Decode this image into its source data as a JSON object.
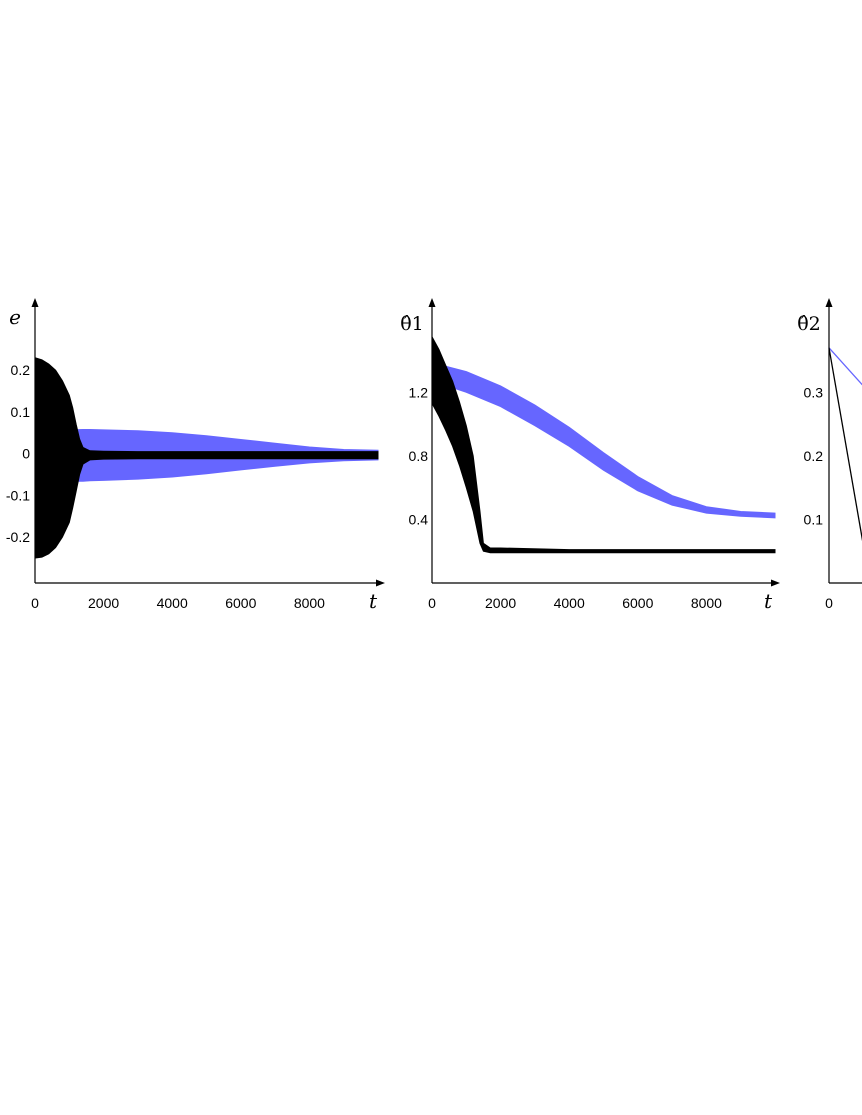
{
  "chart_data": [
    {
      "type": "area",
      "ylabel": "e",
      "xlabel": "t",
      "x_ticks": [
        "0",
        "2000",
        "4000",
        "6000",
        "8000"
      ],
      "y_ticks": [
        "0.2",
        "0.1",
        "0",
        "-0.1",
        "-0.2"
      ],
      "xlim": [
        0,
        10000
      ],
      "ylim": [
        -0.31,
        0.33
      ],
      "colors": {
        "blue": "#6666ff",
        "black": "#000000"
      },
      "series": [
        {
          "color": "blue",
          "kind": "envelope",
          "x": [
            0,
            200,
            600,
            1000,
            1400,
            1600,
            2000,
            3000,
            4000,
            5000,
            6000,
            7000,
            8000,
            9000,
            10000
          ],
          "upper": [
            0.055,
            0.055,
            0.056,
            0.057,
            0.058,
            0.058,
            0.057,
            0.055,
            0.05,
            0.043,
            0.034,
            0.025,
            0.016,
            0.01,
            0.008
          ],
          "lower": [
            -0.066,
            -0.066,
            -0.066,
            -0.066,
            -0.066,
            -0.065,
            -0.064,
            -0.061,
            -0.056,
            -0.048,
            -0.039,
            -0.03,
            -0.022,
            -0.017,
            -0.015
          ]
        },
        {
          "color": "black",
          "kind": "envelope",
          "x": [
            0,
            200,
            400,
            600,
            800,
            1000,
            1100,
            1200,
            1300,
            1400,
            1600,
            2000,
            3000,
            5000,
            8000,
            10000
          ],
          "upper": [
            0.23,
            0.225,
            0.215,
            0.2,
            0.175,
            0.14,
            0.11,
            0.07,
            0.035,
            0.015,
            0.007,
            0.006,
            0.005,
            0.005,
            0.005,
            0.005
          ],
          "lower": [
            -0.25,
            -0.248,
            -0.24,
            -0.225,
            -0.2,
            -0.165,
            -0.13,
            -0.09,
            -0.05,
            -0.025,
            -0.015,
            -0.013,
            -0.012,
            -0.012,
            -0.012,
            -0.012
          ]
        }
      ]
    },
    {
      "type": "area",
      "ylabel": "θ̂1",
      "xlabel": "t",
      "x_ticks": [
        "0",
        "2000",
        "4000",
        "6000",
        "8000"
      ],
      "y_ticks": [
        "1.2",
        "0.8",
        "0.4"
      ],
      "xlim": [
        0,
        10000
      ],
      "ylim": [
        0,
        1.68
      ],
      "colors": {
        "blue": "#6666ff",
        "black": "#000000"
      },
      "series": [
        {
          "color": "blue",
          "kind": "envelope",
          "x": [
            300,
            1000,
            2000,
            3000,
            4000,
            5000,
            6000,
            7000,
            8000,
            9000,
            10000
          ],
          "upper": [
            1.37,
            1.33,
            1.24,
            1.12,
            0.98,
            0.82,
            0.67,
            0.55,
            0.48,
            0.45,
            0.44
          ],
          "lower": [
            1.25,
            1.2,
            1.11,
            0.99,
            0.86,
            0.71,
            0.58,
            0.49,
            0.44,
            0.42,
            0.41
          ]
        },
        {
          "color": "black",
          "kind": "envelope",
          "x": [
            0,
            200,
            400,
            600,
            800,
            1000,
            1200,
            1400,
            1500,
            1700,
            2000,
            4000,
            6000,
            8000,
            10000
          ],
          "upper": [
            1.55,
            1.47,
            1.37,
            1.27,
            1.14,
            0.99,
            0.8,
            0.45,
            0.25,
            0.22,
            0.22,
            0.21,
            0.21,
            0.21,
            0.21
          ],
          "lower": [
            1.13,
            1.05,
            0.96,
            0.86,
            0.74,
            0.6,
            0.45,
            0.25,
            0.2,
            0.19,
            0.19,
            0.19,
            0.19,
            0.19,
            0.19
          ]
        }
      ]
    },
    {
      "type": "line",
      "ylabel": "θ̂2",
      "x_ticks": [
        "0"
      ],
      "y_ticks": [
        "0.3",
        "0.2",
        "0.1"
      ],
      "xlim": [
        0,
        10000
      ],
      "ylim": [
        0,
        0.42
      ],
      "colors": {
        "blue": "#6666ff",
        "black": "#000000"
      },
      "series": [
        {
          "color": "blue",
          "x": [
            0,
            1000
          ],
          "y": [
            0.37,
            0.31
          ]
        },
        {
          "color": "black",
          "x": [
            0,
            1000
          ],
          "y": [
            0.37,
            0.06
          ]
        }
      ]
    }
  ]
}
